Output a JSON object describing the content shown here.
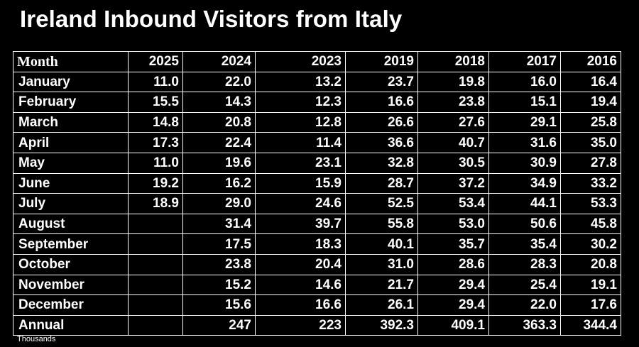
{
  "title": "Ireland Inbound Visitors from Italy",
  "footnote": "Thousands",
  "table": {
    "headers": [
      "Month",
      "2025",
      "2024",
      "2023",
      "2019",
      "2018",
      "2017",
      "2016"
    ],
    "rows": [
      [
        "January",
        "11.0",
        "22.0",
        "13.2",
        "23.7",
        "19.8",
        "16.0",
        "16.4"
      ],
      [
        "February",
        "15.5",
        "14.3",
        "12.3",
        "16.6",
        "23.8",
        "15.1",
        "19.4"
      ],
      [
        "March",
        "14.8",
        "20.8",
        "12.8",
        "26.6",
        "27.6",
        "29.1",
        "25.8"
      ],
      [
        "April",
        "17.3",
        "22.4",
        "11.4",
        "36.6",
        "40.7",
        "31.6",
        "35.0"
      ],
      [
        "May",
        "11.0",
        "19.6",
        "23.1",
        "32.8",
        "30.5",
        "30.9",
        "27.8"
      ],
      [
        "June",
        "19.2",
        "16.2",
        "15.9",
        "28.7",
        "37.2",
        "34.9",
        "33.2"
      ],
      [
        "July",
        "18.9",
        "29.0",
        "24.6",
        "52.5",
        "53.4",
        "44.1",
        "53.3"
      ],
      [
        "August",
        "",
        "31.4",
        "39.7",
        "55.8",
        "53.0",
        "50.6",
        "45.8"
      ],
      [
        "September",
        "",
        "17.5",
        "18.3",
        "40.1",
        "35.7",
        "35.4",
        "30.2"
      ],
      [
        "October",
        "",
        "23.8",
        "20.4",
        "31.0",
        "28.6",
        "28.3",
        "20.8"
      ],
      [
        "November",
        "",
        "15.2",
        "14.6",
        "21.7",
        "29.4",
        "25.4",
        "19.1"
      ],
      [
        "December",
        "",
        "15.6",
        "16.6",
        "26.1",
        "29.4",
        "22.0",
        "17.6"
      ],
      [
        "Annual",
        "",
        "247",
        "223",
        "392.3",
        "409.1",
        "363.3",
        "344.4"
      ]
    ]
  }
}
